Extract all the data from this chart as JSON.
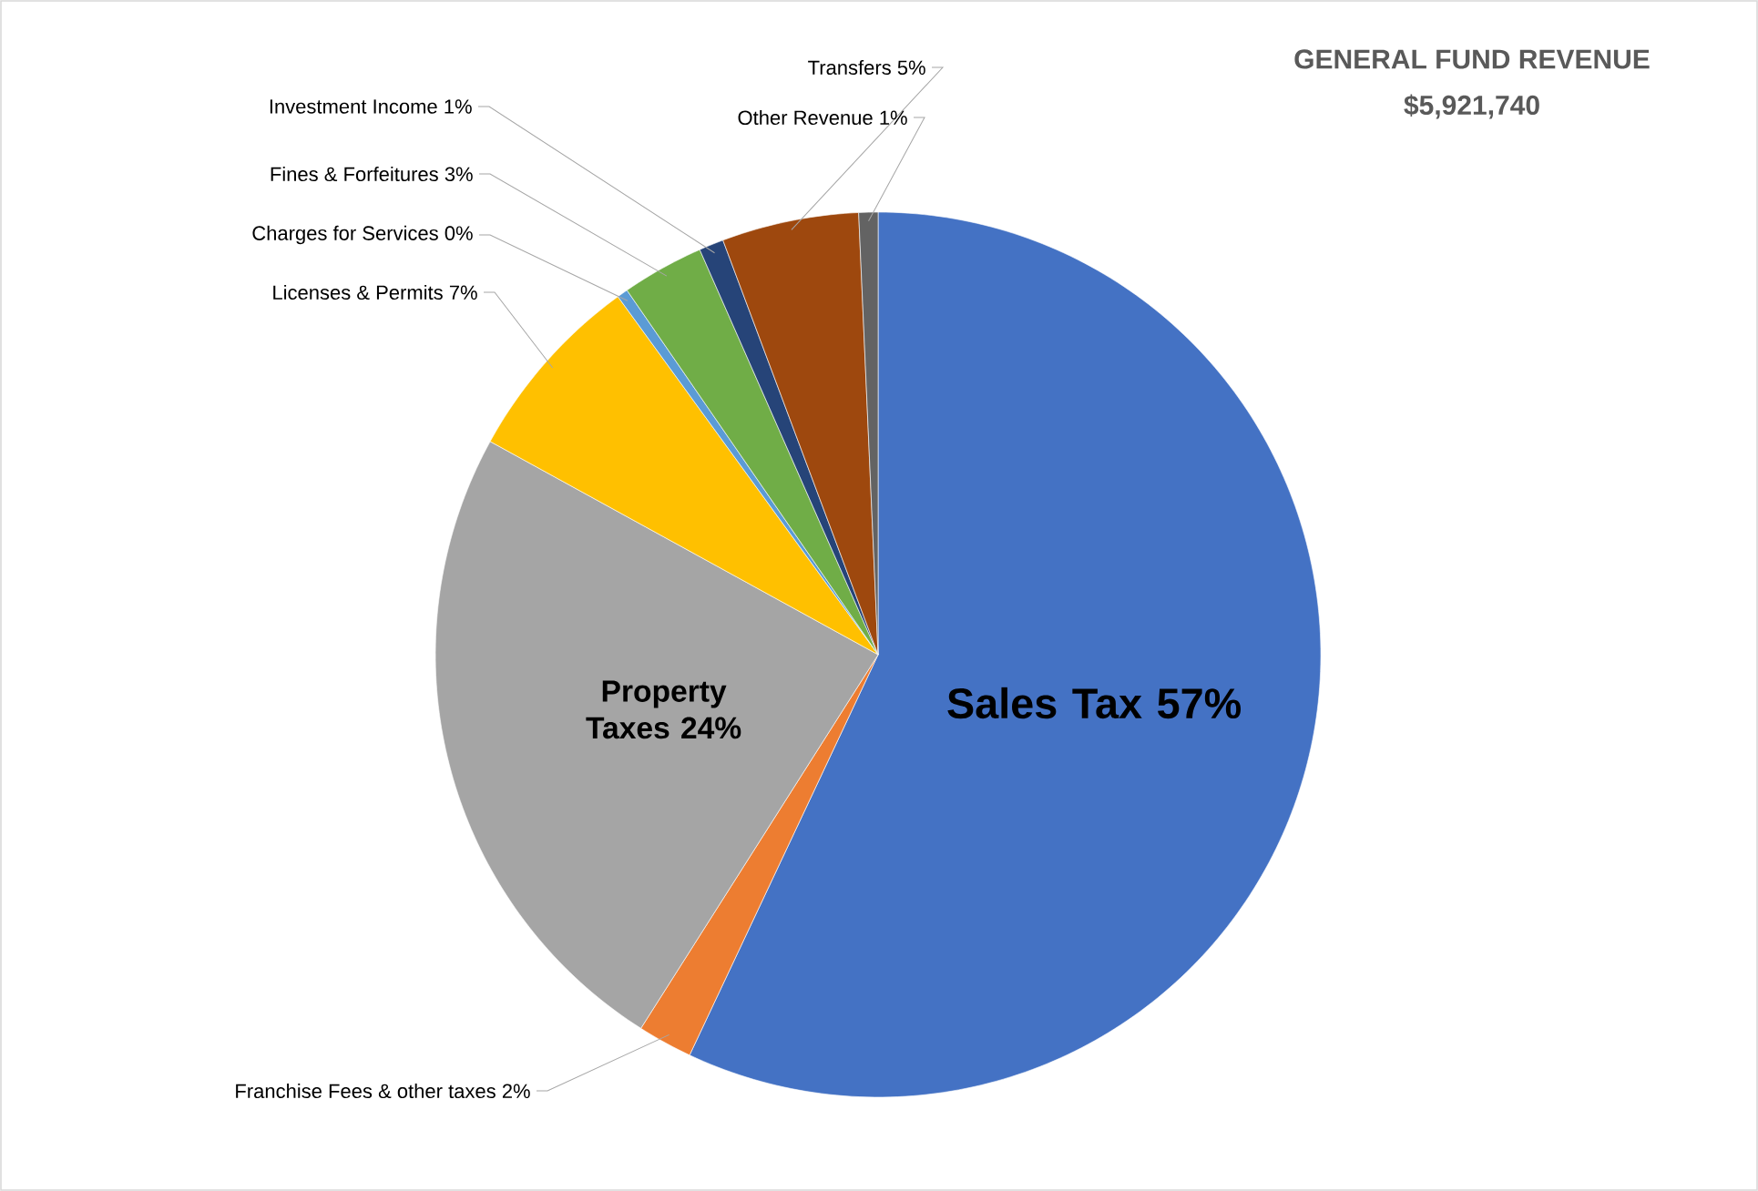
{
  "chart_data": {
    "type": "pie",
    "title": "GENERAL FUND REVENUE",
    "subtitle": "$5,921,740",
    "categories": [
      "Sales Tax",
      "Franchise Fees & other taxes",
      "Property Taxes",
      "Licenses & Permits",
      "Charges for Services",
      "Fines & Forfeitures",
      "Investment Income",
      "Transfers",
      "Other Revenue"
    ],
    "values": [
      57,
      2,
      24,
      7,
      0.4,
      3,
      0.9,
      5,
      0.7
    ],
    "value_labels": [
      "57%",
      "2%",
      "24%",
      "7%",
      "0%",
      "3%",
      "1%",
      "5%",
      "1%"
    ],
    "colors": [
      "#4472c4",
      "#ed7d31",
      "#a5a5a5",
      "#ffc000",
      "#5b9bd5",
      "#70ad47",
      "#264478",
      "#9e480e",
      "#636363"
    ]
  }
}
